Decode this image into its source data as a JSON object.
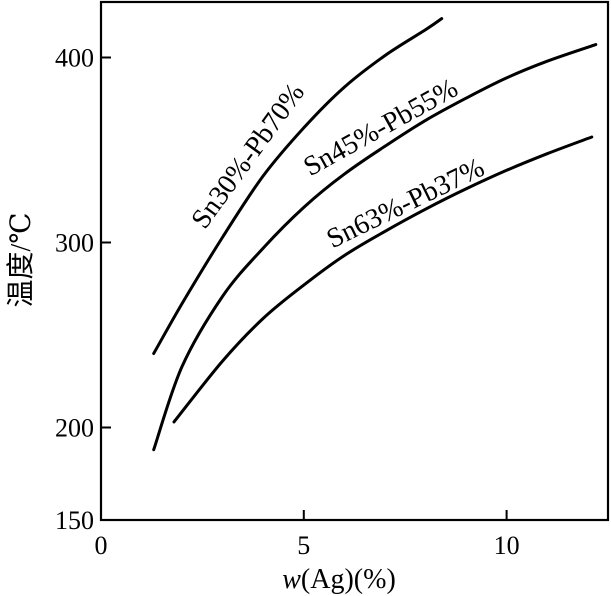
{
  "chart_data": {
    "type": "line",
    "xlabel": {
      "italic": "w",
      "rest": "(Ag)(%)"
    },
    "ylabel": "温度/℃",
    "xlim": [
      0,
      12.5
    ],
    "ylim": [
      150,
      430
    ],
    "x_ticks": [
      {
        "value": 0,
        "label": "0"
      },
      {
        "value": 5,
        "label": "5"
      },
      {
        "value": 10,
        "label": "10"
      }
    ],
    "y_ticks": [
      {
        "value": 150,
        "label": "150"
      },
      {
        "value": 200,
        "label": "200"
      },
      {
        "value": 300,
        "label": "300"
      },
      {
        "value": 400,
        "label": "400"
      }
    ],
    "grid": false,
    "legend": "none",
    "series": [
      {
        "name": "Sn30%-Pb70%",
        "label_anchor": {
          "x": 3.8,
          "y": 344
        },
        "label_angle": -54,
        "points": [
          [
            1.3,
            240
          ],
          [
            2.0,
            267
          ],
          [
            3.0,
            303
          ],
          [
            4.0,
            336
          ],
          [
            5.0,
            362
          ],
          [
            6.0,
            384
          ],
          [
            7.0,
            401
          ],
          [
            8.0,
            415
          ],
          [
            8.4,
            421
          ]
        ]
      },
      {
        "name": "Sn45%-Pb55%",
        "label_anchor": {
          "x": 7.0,
          "y": 358
        },
        "label_angle": -29,
        "points": [
          [
            1.3,
            188
          ],
          [
            2.0,
            233
          ],
          [
            3.0,
            271
          ],
          [
            4.0,
            297
          ],
          [
            5.0,
            319
          ],
          [
            6.0,
            337
          ],
          [
            7.0,
            352
          ],
          [
            8.0,
            366
          ],
          [
            9.0,
            378
          ],
          [
            10.0,
            389
          ],
          [
            11.0,
            398
          ],
          [
            12.2,
            407
          ]
        ]
      },
      {
        "name": "Sn63%-Pb37%",
        "label_anchor": {
          "x": 7.6,
          "y": 317
        },
        "label_angle": -26,
        "points": [
          [
            1.8,
            203
          ],
          [
            3.0,
            236
          ],
          [
            4.0,
            259
          ],
          [
            5.0,
            277
          ],
          [
            6.0,
            293
          ],
          [
            7.0,
            306
          ],
          [
            8.0,
            318
          ],
          [
            9.0,
            329
          ],
          [
            10.0,
            339
          ],
          [
            11.0,
            348
          ],
          [
            12.1,
            357
          ]
        ]
      }
    ]
  }
}
